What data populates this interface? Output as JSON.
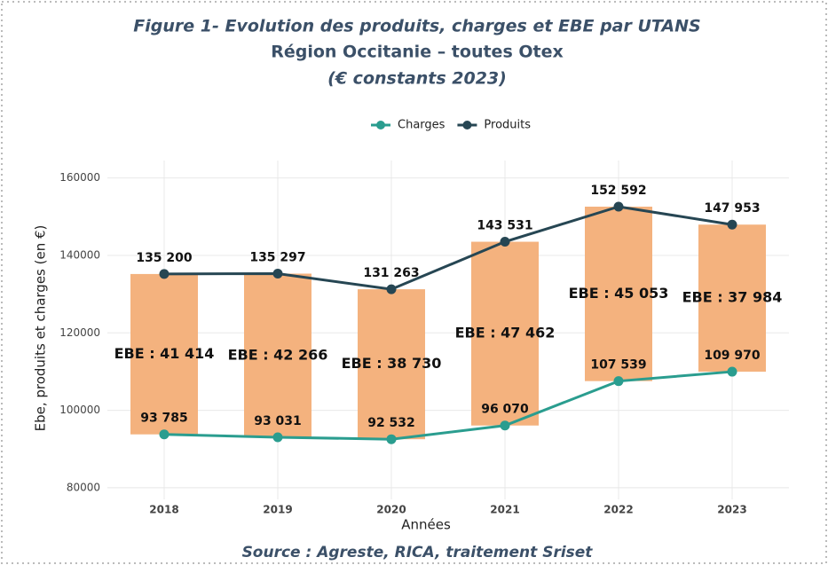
{
  "chart_data": {
    "type": "line",
    "title": "Figure 1- Evolution des produits, charges et EBE par UTANS",
    "subtitle": "Région Occitanie – toutes Otex",
    "subtitle2": "(€ constants 2023)",
    "x_label": "Années",
    "y_label": "Ebe, produits et charges (en €)",
    "source": "Source : Agreste, RICA, traitement Sriset",
    "categories": [
      "2018",
      "2019",
      "2020",
      "2021",
      "2022",
      "2023"
    ],
    "series": [
      {
        "name": "Charges",
        "color": "#2a9d8f",
        "values": [
          93785,
          93031,
          92532,
          96070,
          107539,
          109970
        ],
        "value_labels": [
          "93 785",
          "93 031",
          "92 532",
          "96 070",
          "107 539",
          "109 970"
        ]
      },
      {
        "name": "Produits",
        "color": "#264653",
        "values": [
          135200,
          135297,
          131263,
          143531,
          152592,
          147953
        ],
        "value_labels": [
          "135 200",
          "135 297",
          "131 263",
          "143 531",
          "152 592",
          "147 953"
        ]
      }
    ],
    "ebe": {
      "type": "bar",
      "color": "#f4b27e",
      "stacked_on": "Charges",
      "values": [
        41414,
        42266,
        38730,
        47462,
        45053,
        37984
      ],
      "value_labels": [
        "EBE : 41 414",
        "EBE : 42 266",
        "EBE : 38 730",
        "EBE : 47 462",
        "EBE : 45 053",
        "EBE : 37 984"
      ]
    },
    "ylim": [
      77000,
      164500
    ],
    "yticks": [
      80000,
      100000,
      120000,
      140000,
      160000
    ],
    "grid": true,
    "legend": "top"
  }
}
